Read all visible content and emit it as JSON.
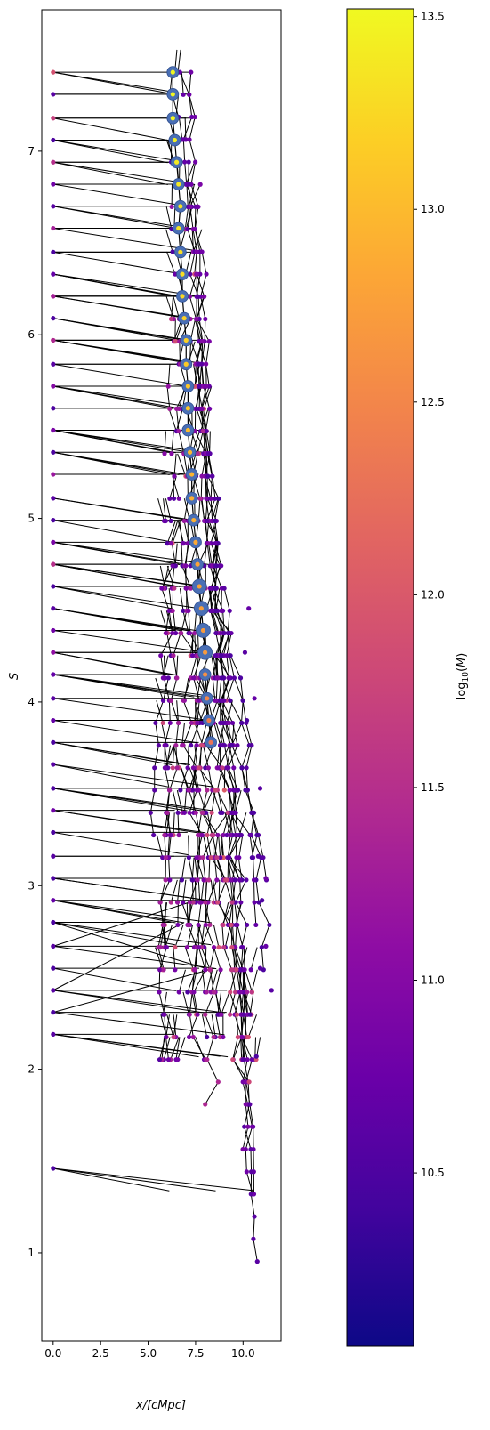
{
  "chart_data": {
    "type": "scatter",
    "title": "",
    "xlabel": "x/[cMpc]",
    "ylabel": "S",
    "xlim": [
      -0.6,
      12.0
    ],
    "ylim": [
      0.52,
      7.77
    ],
    "xticks": [
      0.0,
      2.5,
      5.0,
      7.5,
      10.0
    ],
    "xtick_labels": [
      "0.0",
      "2.5",
      "5.0",
      "7.5",
      "10.0"
    ],
    "yticks": [
      1,
      2,
      3,
      4,
      5,
      6,
      7
    ],
    "ytick_labels": [
      "1",
      "2",
      "3",
      "4",
      "5",
      "6",
      "7"
    ],
    "grid": false,
    "colorbar": {
      "label": "log10(M)",
      "colormap": "plasma",
      "range": [
        10.05,
        13.52
      ],
      "ticks": [
        10.5,
        11.0,
        11.5,
        12.0,
        12.5,
        13.0,
        13.5
      ],
      "tick_labels": [
        "10.5",
        "11.0",
        "11.5",
        "12.0",
        "12.5",
        "13.0",
        "13.5"
      ]
    },
    "main_branch": {
      "name": "main progenitor",
      "edge_color": "#4a6fb5",
      "x": [
        6.3,
        6.3,
        6.3,
        6.4,
        6.5,
        6.6,
        6.7,
        6.6,
        6.7,
        6.8,
        6.8,
        6.9,
        7.0,
        7.0,
        7.1,
        7.1,
        7.1,
        7.2,
        7.3,
        7.3,
        7.4,
        7.5,
        7.6,
        7.7,
        7.8,
        7.9,
        8.0,
        8.0,
        8.1,
        8.2,
        8.3
      ],
      "y": [
        7.43,
        7.31,
        7.18,
        7.06,
        6.94,
        6.82,
        6.7,
        6.58,
        6.45,
        6.33,
        6.21,
        6.09,
        5.97,
        5.84,
        5.72,
        5.6,
        5.48,
        5.36,
        5.24,
        5.11,
        4.99,
        4.87,
        4.75,
        4.63,
        4.51,
        4.39,
        4.27,
        4.15,
        4.02,
        3.9,
        3.78
      ],
      "log_mass": [
        13.5,
        13.5,
        13.5,
        13.45,
        13.4,
        13.4,
        13.35,
        13.35,
        13.3,
        13.3,
        13.25,
        13.2,
        13.2,
        13.15,
        13.1,
        13.1,
        13.0,
        13.0,
        12.95,
        12.9,
        12.9,
        12.85,
        12.8,
        12.8,
        12.75,
        12.7,
        12.7,
        12.6,
        12.5,
        12.4,
        12.3
      ]
    },
    "secondary_branches": [
      {
        "x0": 6.9,
        "y_start": 7.43,
        "y_end": 1.22,
        "drift": 3.8,
        "wiggle": 0.28,
        "log_mass": 10.7
      },
      {
        "x0": 7.2,
        "y_start": 7.43,
        "y_end": 1.22,
        "drift": 3.4,
        "wiggle": 0.3,
        "log_mass": 10.8
      },
      {
        "x0": 7.0,
        "y_start": 7.06,
        "y_end": 0.85,
        "drift": 3.7,
        "wiggle": 0.25,
        "log_mass": 10.6
      },
      {
        "x0": 7.5,
        "y_start": 6.82,
        "y_end": 1.46,
        "drift": 2.6,
        "wiggle": 0.35,
        "log_mass": 10.9
      },
      {
        "x0": 7.4,
        "y_start": 6.45,
        "y_end": 2.19,
        "drift": 1.2,
        "wiggle": 0.4,
        "log_mass": 11.0
      },
      {
        "x0": 7.8,
        "y_start": 5.84,
        "y_end": 2.55,
        "drift": 2.3,
        "wiggle": 0.45,
        "log_mass": 10.6
      },
      {
        "x0": 8.1,
        "y_start": 5.24,
        "y_end": 2.43,
        "drift": 3.4,
        "wiggle": 0.5,
        "log_mass": 10.5
      },
      {
        "x0": 8.5,
        "y_start": 4.87,
        "y_end": 2.67,
        "drift": 2.2,
        "wiggle": 0.55,
        "log_mass": 10.7
      },
      {
        "x0": 9.2,
        "y_start": 4.63,
        "y_end": 2.92,
        "drift": 1.8,
        "wiggle": 0.35,
        "log_mass": 10.6
      },
      {
        "x0": 9.6,
        "y_start": 4.27,
        "y_end": 3.04,
        "drift": 1.2,
        "wiggle": 0.3,
        "log_mass": 10.5
      },
      {
        "x0": 6.0,
        "y_start": 4.75,
        "y_end": 1.95,
        "drift": -0.2,
        "wiggle": 0.35,
        "log_mass": 10.8
      },
      {
        "x0": 6.8,
        "y_start": 6.09,
        "y_end": 1.95,
        "drift": 0.8,
        "wiggle": 0.45,
        "log_mass": 11.2
      },
      {
        "x0": 7.6,
        "y_start": 5.48,
        "y_end": 1.7,
        "drift": 0.8,
        "wiggle": 0.4,
        "log_mass": 11.4
      },
      {
        "x0": 7.2,
        "y_start": 4.99,
        "y_end": 2.07,
        "drift": 0.4,
        "wiggle": 0.5,
        "log_mass": 10.9
      },
      {
        "x0": 6.4,
        "y_start": 4.39,
        "y_end": 2.43,
        "drift": -0.5,
        "wiggle": 0.45,
        "log_mass": 11.3
      },
      {
        "x0": 5.8,
        "y_start": 4.15,
        "y_end": 3.16,
        "drift": -0.6,
        "wiggle": 0.3,
        "log_mass": 10.6
      },
      {
        "x0": 8.3,
        "y_start": 4.02,
        "y_end": 2.19,
        "drift": 1.6,
        "wiggle": 0.55,
        "log_mass": 11.6
      },
      {
        "x0": 7.9,
        "y_start": 3.78,
        "y_end": 1.83,
        "drift": 2.1,
        "wiggle": 0.45,
        "log_mass": 11.8
      }
    ],
    "left_column": {
      "x": [
        0.0,
        0.0,
        0.0,
        0.0,
        0.0,
        0.0,
        0.0,
        0.0,
        0.0,
        0.0,
        0.0,
        0.0,
        0.0,
        0.0,
        0.0,
        0.0,
        0.0,
        0.0,
        0.0,
        0.0,
        0.0,
        0.0,
        0.0,
        0.0,
        0.0,
        0.0,
        0.0,
        0.0,
        0.0,
        0.0,
        0.0,
        0.0,
        0.0,
        0.0,
        0.0,
        0.0,
        0.0,
        0.0,
        0.0,
        0.0,
        0.0,
        0.0,
        0.0,
        0.0,
        0.0,
        0.0,
        0.0,
        0.0,
        0.0,
        0.0
      ],
      "y": [
        7.43,
        7.31,
        7.18,
        7.06,
        6.94,
        6.82,
        6.7,
        6.58,
        6.45,
        6.33,
        6.21,
        6.09,
        5.97,
        5.84,
        5.72,
        5.6,
        5.48,
        5.36,
        5.24,
        5.11,
        4.99,
        4.87,
        4.75,
        4.63,
        4.51,
        4.39,
        4.27,
        4.15,
        4.02,
        3.9,
        3.78,
        3.66,
        3.53,
        3.41,
        3.29,
        3.16,
        3.04,
        2.92,
        2.8,
        2.67,
        2.55,
        2.43,
        2.31,
        2.19,
        1.46,
        4.75,
        5.97,
        6.21,
        5.48,
        4.15
      ],
      "log_mass": [
        11.9,
        10.6,
        11.7,
        10.5,
        11.5,
        10.8,
        10.6,
        11.3,
        10.5,
        10.7,
        11.6,
        10.5,
        11.8,
        10.6,
        11.0,
        10.5,
        10.7,
        10.5,
        11.2,
        10.6,
        10.5,
        10.9,
        11.7,
        10.5,
        10.6,
        10.8,
        11.1,
        10.5,
        10.6,
        10.7,
        10.5,
        10.6,
        10.5,
        10.8,
        10.5,
        10.6,
        10.5,
        10.7,
        10.5,
        10.6,
        10.5,
        10.6,
        10.5,
        10.6,
        10.5,
        11.5,
        11.4,
        11.3,
        10.9,
        10.7
      ]
    },
    "right_edge_nodes": {
      "x": [
        11.5,
        11.2,
        11.0,
        10.8,
        11.2,
        10.9,
        10.2,
        10.6,
        10.9,
        10.7,
        10.1,
        10.3
      ],
      "y": [
        2.43,
        2.67,
        2.92,
        3.16,
        3.04,
        3.53,
        3.9,
        4.02,
        2.55,
        2.07,
        4.27,
        4.51
      ],
      "log_mass": [
        10.6,
        10.7,
        10.5,
        10.6,
        10.8,
        10.6,
        10.5,
        10.7,
        10.6,
        10.5,
        10.6,
        10.7
      ]
    }
  }
}
